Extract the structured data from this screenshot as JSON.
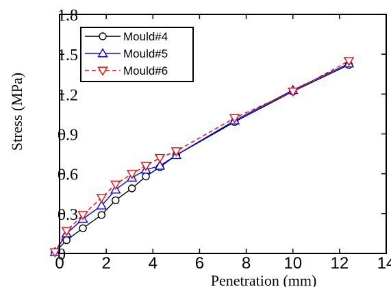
{
  "chart_data": {
    "type": "line",
    "title": "",
    "xlabel": "Penetration (mm)",
    "ylabel": "Stress (MPa)",
    "xlim": [
      0,
      14
    ],
    "ylim": [
      0,
      1.8
    ],
    "x_ticks": [
      0,
      2,
      4,
      6,
      8,
      10,
      12,
      14
    ],
    "y_ticks": [
      0,
      0.3,
      0.6,
      0.9,
      1.2,
      1.5,
      1.8
    ],
    "x_tick_labels": [
      "0",
      "2",
      "4",
      "6",
      "8",
      "10",
      "12",
      "14"
    ],
    "y_tick_labels": [
      "0",
      "0.3",
      "0.6",
      "0.9",
      "1.2",
      "1.5",
      "1.8"
    ],
    "grid": false,
    "legend_position": "top-left",
    "series": [
      {
        "name": "Mould#4",
        "color": "#000000",
        "marker": "circle",
        "line_style": "solid",
        "x": [
          -0.2,
          0.3,
          1.0,
          1.8,
          2.4,
          3.1,
          3.7,
          4.3,
          5.0,
          7.5,
          10.0,
          12.4
        ],
        "y": [
          0.01,
          0.1,
          0.19,
          0.29,
          0.4,
          0.49,
          0.58,
          0.65,
          0.74,
          0.99,
          1.22,
          1.42
        ]
      },
      {
        "name": "Mould#5",
        "color": "#0000ff",
        "marker": "triangle-up",
        "line_style": "solid",
        "x": [
          -0.2,
          0.3,
          1.0,
          1.8,
          2.4,
          3.1,
          3.7,
          4.3,
          5.0,
          7.5,
          10.0,
          12.4
        ],
        "y": [
          0.01,
          0.15,
          0.26,
          0.36,
          0.48,
          0.57,
          0.63,
          0.66,
          0.74,
          1.0,
          1.23,
          1.43
        ]
      },
      {
        "name": "Mould#6",
        "color": "#ff0000",
        "marker": "triangle-down",
        "line_style": "dashed",
        "x": [
          -0.2,
          0.3,
          1.0,
          1.8,
          2.4,
          3.1,
          3.7,
          4.3,
          5.0,
          7.5,
          10.0,
          12.4
        ],
        "y": [
          0.01,
          0.17,
          0.29,
          0.42,
          0.52,
          0.6,
          0.66,
          0.72,
          0.77,
          1.02,
          1.22,
          1.45
        ]
      }
    ]
  }
}
